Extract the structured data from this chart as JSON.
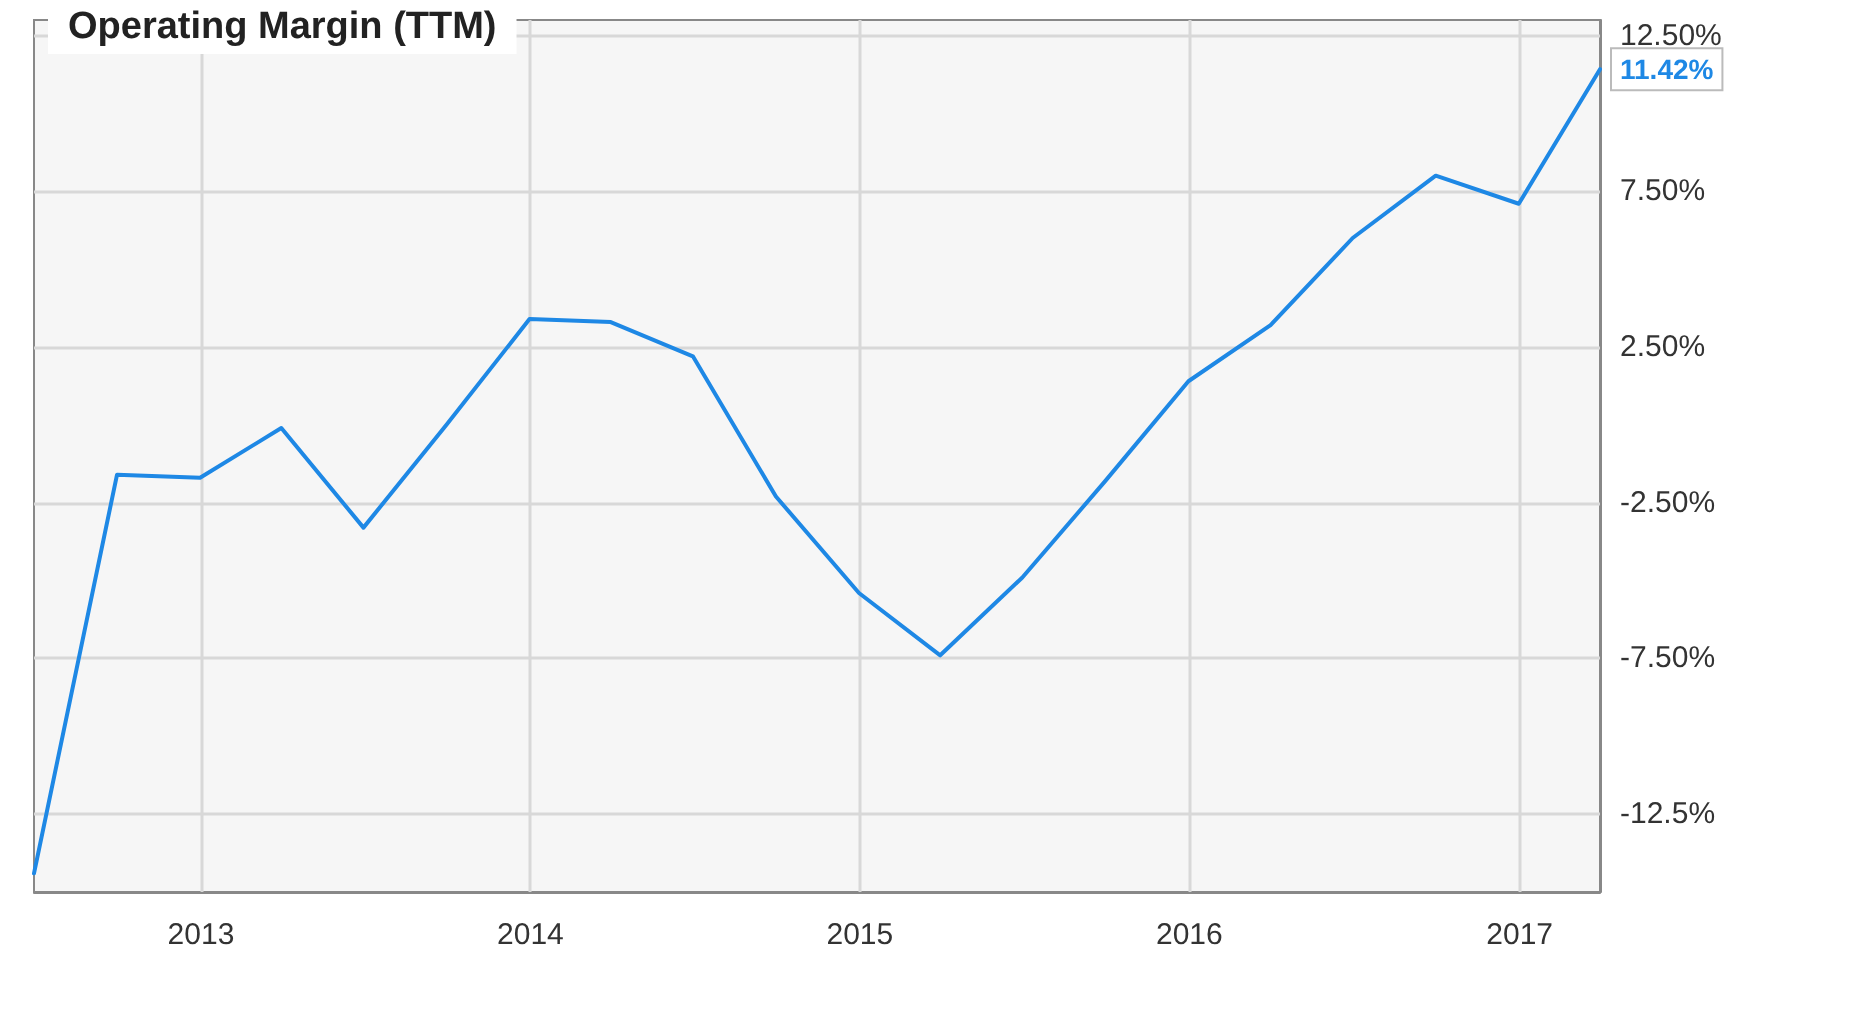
{
  "chart_data": {
    "type": "line",
    "title": "Operating Margin (TTM)",
    "x": [
      "2012-06-30",
      "2012-09-30",
      "2012-12-31",
      "2013-03-31",
      "2013-06-30",
      "2013-09-30",
      "2013-12-31",
      "2014-03-31",
      "2014-06-30",
      "2014-09-30",
      "2014-12-31",
      "2015-03-31",
      "2015-06-30",
      "2015-09-30",
      "2015-12-31",
      "2016-03-31",
      "2016-06-30",
      "2016-09-30",
      "2016-12-31",
      "2017-03-31"
    ],
    "series": [
      {
        "color": "#1e88e5",
        "values": [
          -14.4,
          -1.6,
          -1.7,
          -0.1,
          -3.3,
          0.0,
          3.4,
          3.3,
          2.2,
          -2.3,
          -5.4,
          -7.4,
          -4.9,
          -1.8,
          1.4,
          3.2,
          6.0,
          8.0,
          7.1,
          11.42
        ],
        "value_labels": [
          null,
          null,
          null,
          null,
          null,
          null,
          null,
          null,
          null,
          null,
          null,
          null,
          null,
          null,
          null,
          null,
          null,
          null,
          null,
          "11.42%"
        ]
      }
    ],
    "xlim": [
      "2012-06-30",
      "2017-03-31"
    ],
    "xticks": [
      "2013",
      "2014",
      "2015",
      "2016",
      "2017"
    ],
    "ylim": [
      -15,
      13
    ],
    "yticks": [
      {
        "value": 12.5,
        "label": "12.50%"
      },
      {
        "value": 7.5,
        "label": "7.50%"
      },
      {
        "value": 2.5,
        "label": "2.50%"
      },
      {
        "value": -2.5,
        "label": "-2.50%"
      },
      {
        "value": -7.5,
        "label": "-7.50%"
      },
      {
        "value": -12.5,
        "label": "-12.5%"
      }
    ],
    "grid": true,
    "marker": "none",
    "line_style": "solid"
  }
}
